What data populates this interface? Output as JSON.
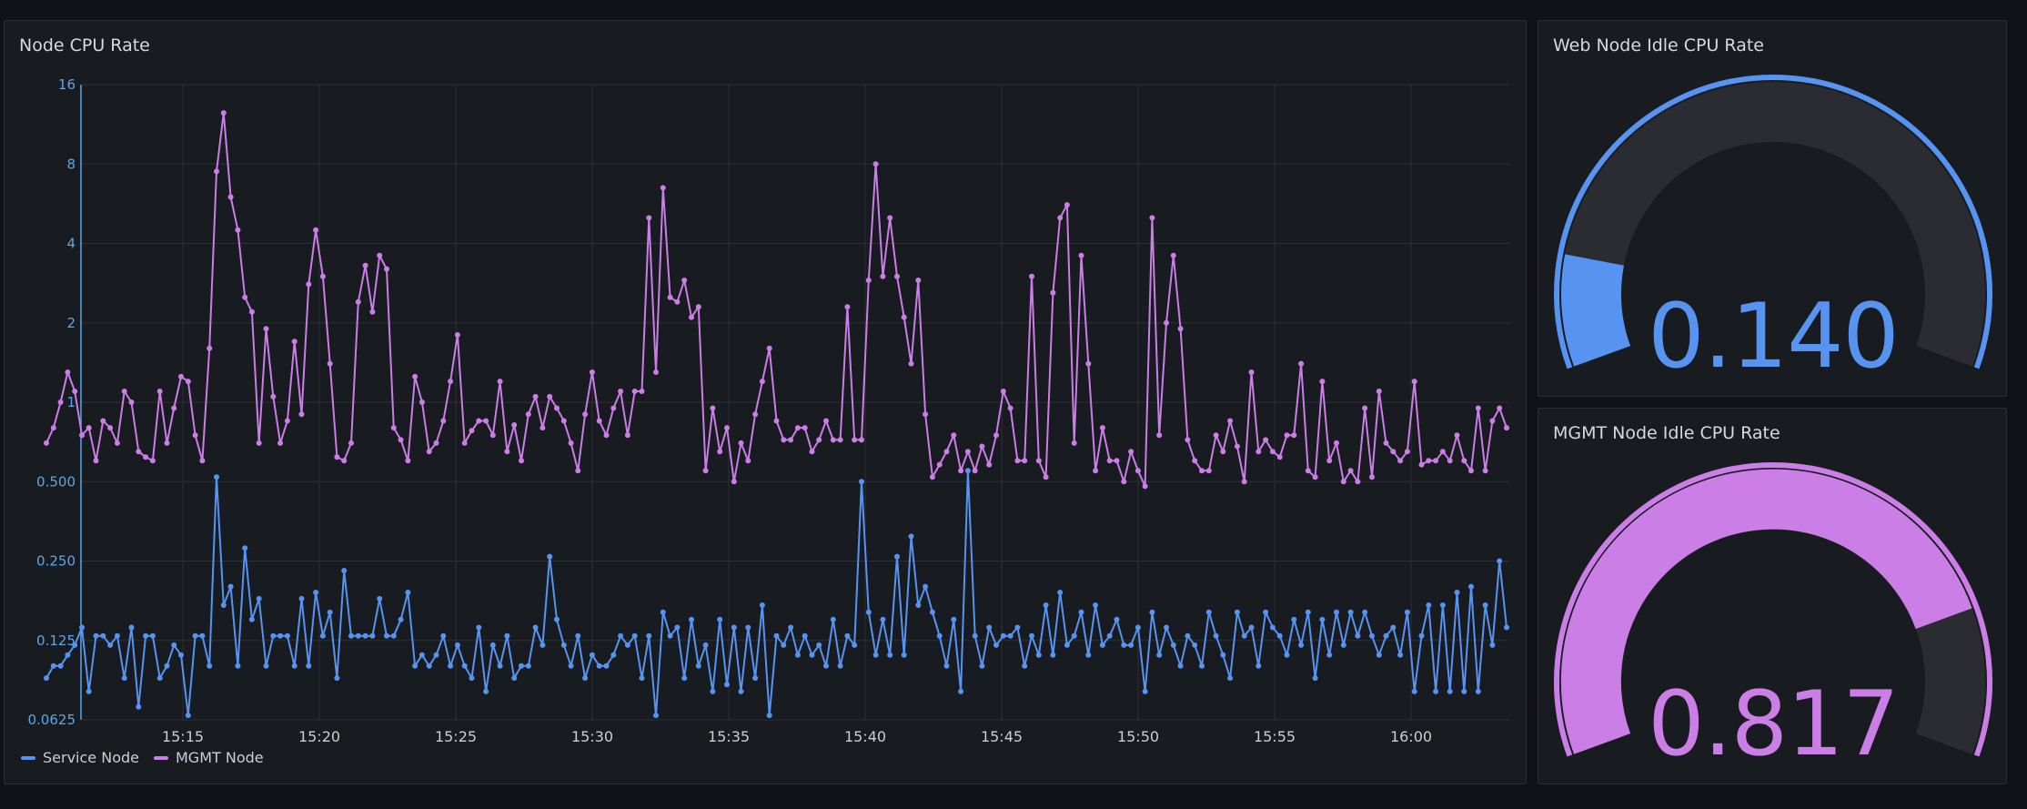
{
  "panels": {
    "timeseries": {
      "title": "Node CPU Rate"
    },
    "gauge_web": {
      "title": "Web Node Idle CPU Rate",
      "value_text": "0.140",
      "color": "#5794f2"
    },
    "gauge_mgmt": {
      "title": "MGMT Node Idle CPU Rate",
      "value_text": "0.817",
      "color": "#ca7ee6"
    }
  },
  "legend": [
    {
      "name": "Service Node",
      "color": "#5794f2"
    },
    {
      "name": "MGMT Node",
      "color": "#ca7ee6"
    }
  ],
  "chart_data": [
    {
      "type": "line",
      "title": "Node CPU Rate",
      "y_scale": "log2",
      "ylim": [
        0.0625,
        16
      ],
      "y_ticks": [
        "0.0625",
        "0.125",
        "0.250",
        "0.500",
        "1",
        "2",
        "4",
        "8",
        "16"
      ],
      "x_ticks": [
        "15:15",
        "15:20",
        "15:25",
        "15:30",
        "15:35",
        "15:40",
        "15:45",
        "15:50",
        "15:55",
        "16:00"
      ],
      "x_start": "15:10",
      "x_step_seconds": 15,
      "grid": true,
      "legend_position": "bottom-left",
      "series": [
        {
          "name": "MGMT Node",
          "color": "#ca7ee6",
          "values": [
            0.7,
            0.8,
            1.0,
            1.3,
            1.1,
            0.75,
            0.8,
            0.6,
            0.85,
            0.8,
            0.7,
            1.1,
            1.0,
            0.65,
            0.62,
            0.6,
            1.1,
            0.7,
            0.95,
            1.25,
            1.2,
            0.75,
            0.6,
            1.6,
            7.5,
            12.5,
            6.0,
            4.5,
            2.5,
            2.2,
            0.7,
            1.9,
            1.05,
            0.7,
            0.85,
            1.7,
            0.9,
            2.8,
            4.5,
            3.0,
            1.4,
            0.62,
            0.6,
            0.7,
            2.4,
            3.3,
            2.2,
            3.6,
            3.2,
            0.8,
            0.72,
            0.6,
            1.25,
            1.0,
            0.65,
            0.7,
            0.85,
            1.2,
            1.8,
            0.7,
            0.78,
            0.85,
            0.85,
            0.75,
            1.2,
            0.65,
            0.82,
            0.6,
            0.9,
            1.05,
            0.8,
            1.05,
            0.95,
            0.85,
            0.7,
            0.55,
            0.9,
            1.3,
            0.85,
            0.75,
            0.95,
            1.1,
            0.75,
            1.1,
            1.1,
            5.0,
            1.3,
            6.5,
            2.5,
            2.4,
            2.9,
            2.1,
            2.3,
            0.55,
            0.95,
            0.65,
            0.8,
            0.5,
            0.7,
            0.6,
            0.9,
            1.2,
            1.6,
            0.85,
            0.72,
            0.72,
            0.8,
            0.8,
            0.65,
            0.72,
            0.85,
            0.72,
            0.72,
            2.3,
            0.72,
            0.72,
            2.9,
            8.0,
            3.0,
            5.0,
            3.0,
            2.1,
            1.4,
            2.9,
            0.9,
            0.52,
            0.58,
            0.65,
            0.75,
            0.55,
            0.65,
            0.55,
            0.68,
            0.58,
            0.75,
            1.1,
            0.95,
            0.6,
            0.6,
            3.0,
            0.6,
            0.52,
            2.6,
            5.0,
            5.6,
            0.7,
            3.6,
            1.4,
            0.55,
            0.8,
            0.6,
            0.6,
            0.5,
            0.65,
            0.55,
            0.48,
            5.0,
            0.75,
            2.0,
            3.6,
            1.9,
            0.72,
            0.6,
            0.55,
            0.55,
            0.75,
            0.65,
            0.85,
            0.68,
            0.5,
            1.3,
            0.65,
            0.72,
            0.65,
            0.62,
            0.75,
            0.75,
            1.4,
            0.55,
            0.52,
            1.2,
            0.6,
            0.7,
            0.5,
            0.55,
            0.5,
            0.95,
            0.52,
            1.1,
            0.7,
            0.65,
            0.6,
            0.65,
            1.2,
            0.58,
            0.6,
            0.6,
            0.65,
            0.6,
            0.75,
            0.6,
            0.55,
            0.95,
            0.55,
            0.85,
            0.95,
            0.8
          ],
          "values_end": "16:03:30"
        },
        {
          "name": "Service Node",
          "color": "#5794f2",
          "values": [
            0.09,
            0.1,
            0.1,
            0.11,
            0.12,
            0.14,
            0.08,
            0.13,
            0.13,
            0.12,
            0.13,
            0.09,
            0.14,
            0.07,
            0.13,
            0.13,
            0.09,
            0.1,
            0.12,
            0.11,
            0.065,
            0.13,
            0.13,
            0.1,
            0.52,
            0.17,
            0.2,
            0.1,
            0.28,
            0.15,
            0.18,
            0.1,
            0.13,
            0.13,
            0.13,
            0.1,
            0.18,
            0.1,
            0.19,
            0.13,
            0.16,
            0.09,
            0.23,
            0.13,
            0.13,
            0.13,
            0.13,
            0.18,
            0.13,
            0.13,
            0.15,
            0.19,
            0.1,
            0.11,
            0.1,
            0.11,
            0.13,
            0.1,
            0.12,
            0.1,
            0.09,
            0.14,
            0.08,
            0.12,
            0.1,
            0.13,
            0.09,
            0.1,
            0.1,
            0.14,
            0.12,
            0.26,
            0.15,
            0.12,
            0.1,
            0.13,
            0.09,
            0.11,
            0.1,
            0.1,
            0.11,
            0.13,
            0.12,
            0.13,
            0.09,
            0.13,
            0.065,
            0.16,
            0.13,
            0.14,
            0.09,
            0.15,
            0.1,
            0.12,
            0.08,
            0.15,
            0.085,
            0.14,
            0.08,
            0.14,
            0.09,
            0.17,
            0.065,
            0.13,
            0.12,
            0.14,
            0.11,
            0.13,
            0.11,
            0.12,
            0.1,
            0.15,
            0.1,
            0.13,
            0.12,
            0.5,
            0.16,
            0.11,
            0.15,
            0.11,
            0.26,
            0.11,
            0.31,
            0.17,
            0.2,
            0.16,
            0.13,
            0.1,
            0.15,
            0.08,
            0.55,
            0.13,
            0.1,
            0.14,
            0.12,
            0.13,
            0.13,
            0.14,
            0.1,
            0.13,
            0.11,
            0.17,
            0.11,
            0.19,
            0.12,
            0.13,
            0.16,
            0.11,
            0.17,
            0.12,
            0.13,
            0.15,
            0.12,
            0.12,
            0.14,
            0.08,
            0.16,
            0.11,
            0.14,
            0.12,
            0.1,
            0.13,
            0.12,
            0.1,
            0.16,
            0.13,
            0.11,
            0.09,
            0.16,
            0.13,
            0.14,
            0.1,
            0.16,
            0.14,
            0.13,
            0.11,
            0.15,
            0.12,
            0.16,
            0.09,
            0.15,
            0.11,
            0.16,
            0.12,
            0.16,
            0.13,
            0.16,
            0.13,
            0.11,
            0.13,
            0.14,
            0.11,
            0.16,
            0.08,
            0.13,
            0.17,
            0.08,
            0.17,
            0.08,
            0.19,
            0.08,
            0.2,
            0.08,
            0.17,
            0.12,
            0.25,
            0.14
          ],
          "values_end": "16:03:30"
        }
      ]
    },
    {
      "type": "gauge",
      "title": "Web Node Idle CPU Rate",
      "value": 0.14,
      "min": 0,
      "max": 1,
      "color": "#5794f2"
    },
    {
      "type": "gauge",
      "title": "MGMT Node Idle CPU Rate",
      "value": 0.817,
      "min": 0,
      "max": 1,
      "color": "#ca7ee6"
    }
  ]
}
